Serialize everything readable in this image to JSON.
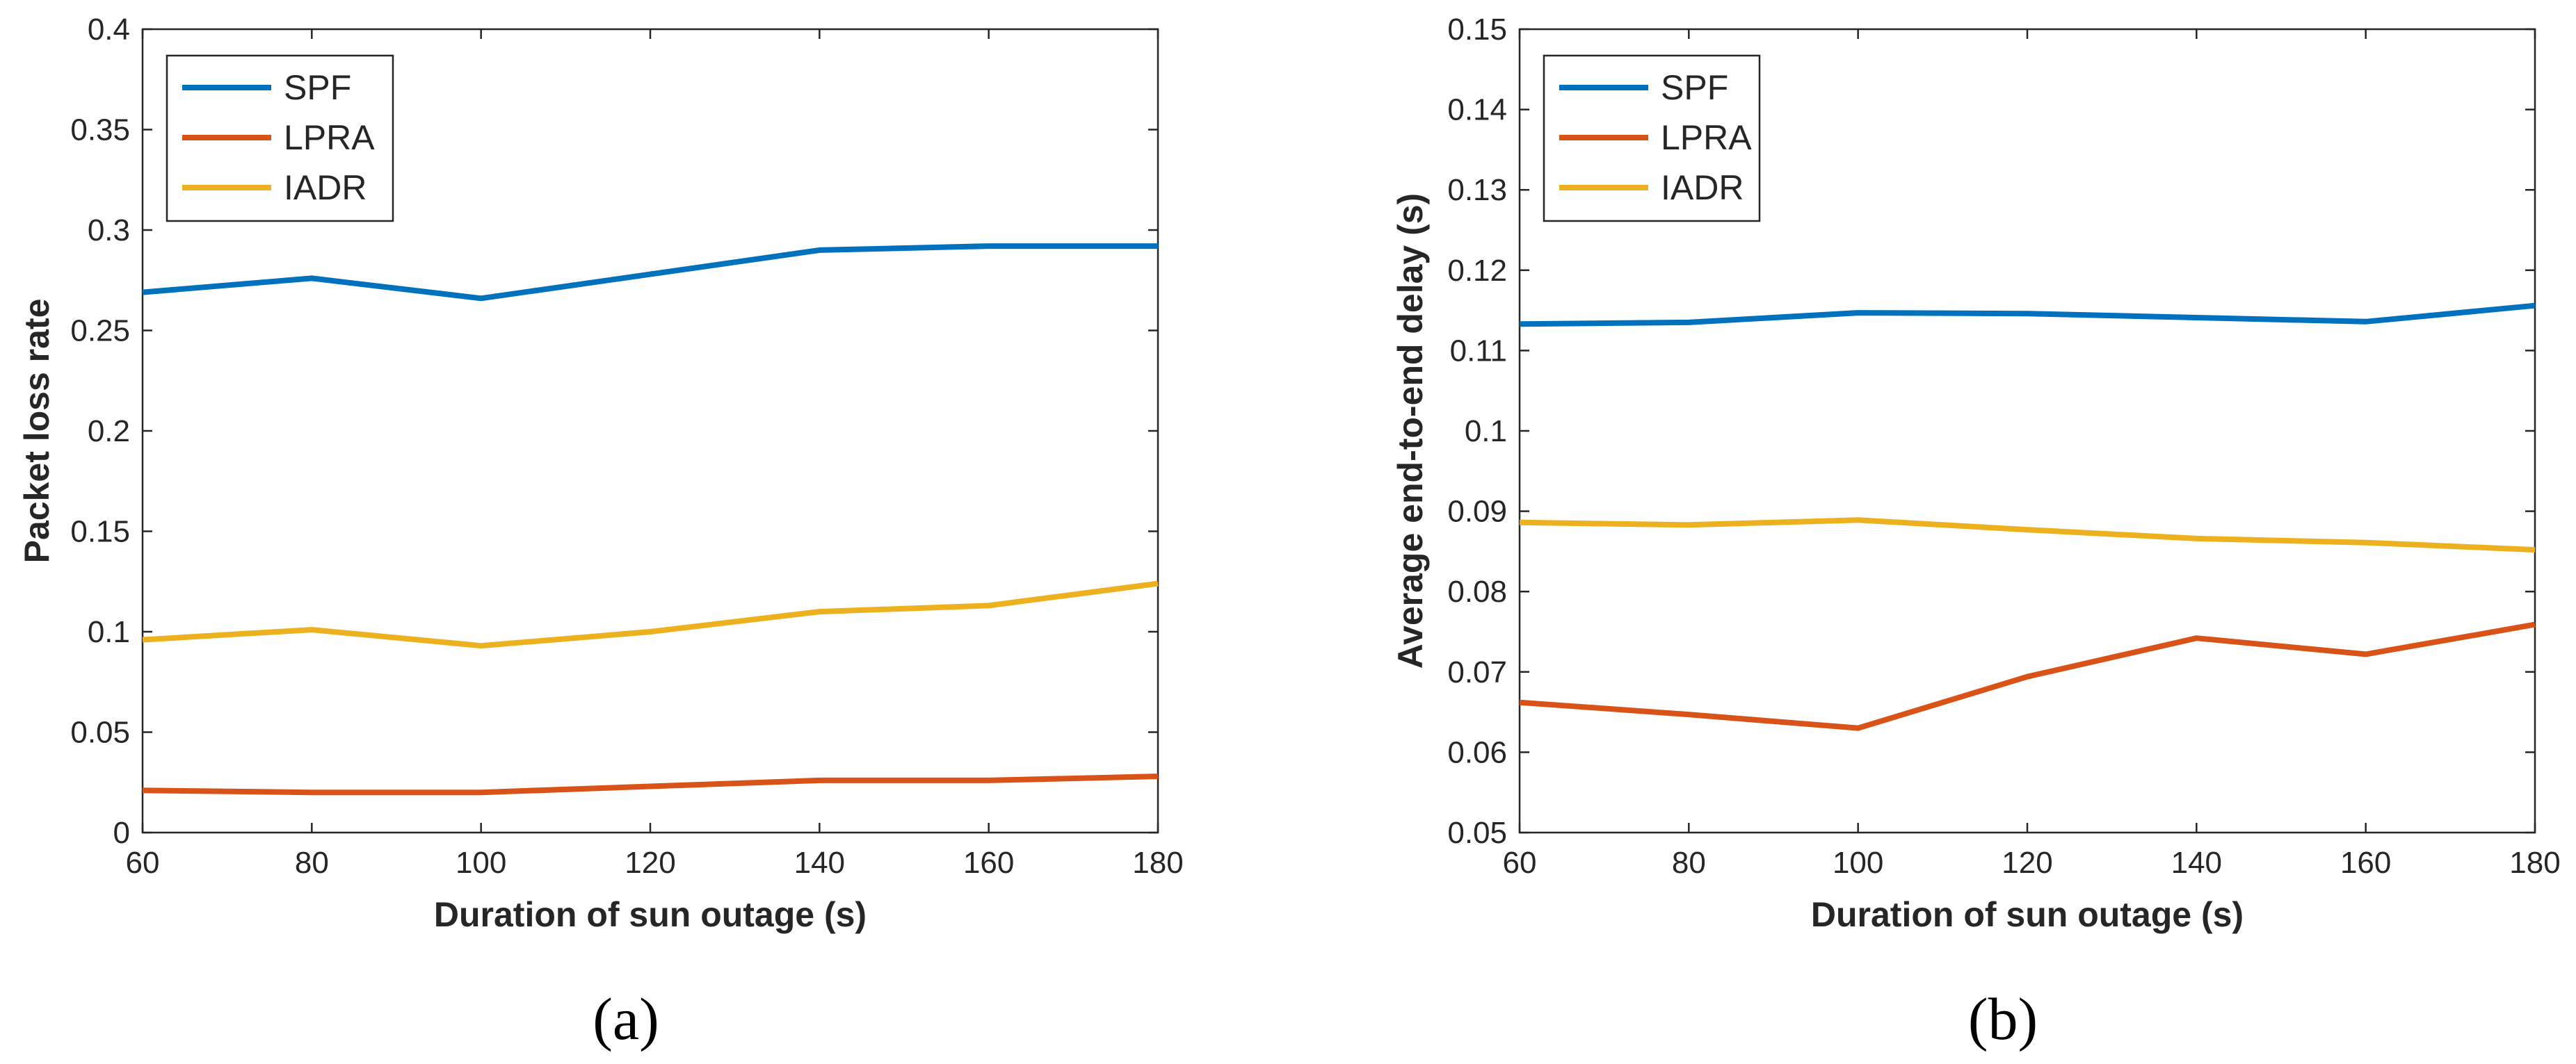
{
  "chart_data": [
    {
      "type": "line",
      "panel_label": "(a)",
      "xlabel": "Duration of sun outage (s)",
      "ylabel": "Packet loss rate",
      "xlim": [
        60,
        180
      ],
      "ylim": [
        0,
        0.4
      ],
      "xticks": [
        "60",
        "80",
        "100",
        "120",
        "140",
        "160",
        "180"
      ],
      "yticks": [
        "0",
        "0.05",
        "0.1",
        "0.15",
        "0.2",
        "0.25",
        "0.3",
        "0.35",
        "0.4"
      ],
      "legend_position": "top-left",
      "x": [
        60,
        80,
        100,
        120,
        140,
        160,
        180
      ],
      "series": [
        {
          "name": "SPF",
          "color": "#0072BD",
          "values": [
            0.269,
            0.276,
            0.266,
            0.278,
            0.29,
            0.292,
            0.292
          ]
        },
        {
          "name": "LPRA",
          "color": "#D95319",
          "values": [
            0.021,
            0.02,
            0.02,
            0.023,
            0.026,
            0.026,
            0.028
          ]
        },
        {
          "name": "IADR",
          "color": "#EDB120",
          "values": [
            0.096,
            0.101,
            0.093,
            0.1,
            0.11,
            0.113,
            0.124
          ]
        }
      ]
    },
    {
      "type": "line",
      "panel_label": "(b)",
      "xlabel": "Duration of sun outage (s)",
      "ylabel": "Average end-to-end delay (s)",
      "xlim": [
        60,
        180
      ],
      "ylim": [
        0.05,
        0.15
      ],
      "xticks": [
        "60",
        "80",
        "100",
        "120",
        "140",
        "160",
        "180"
      ],
      "yticks": [
        "0.05",
        "0.06",
        "0.07",
        "0.08",
        "0.09",
        "0.1",
        "0.11",
        "0.12",
        "0.13",
        "0.14",
        "0.15"
      ],
      "legend_position": "top-left",
      "x": [
        60,
        80,
        100,
        120,
        140,
        160,
        180
      ],
      "series": [
        {
          "name": "SPF",
          "color": "#0072BD",
          "values": [
            0.1133,
            0.1135,
            0.1147,
            0.1146,
            0.1141,
            0.1136,
            0.1156
          ]
        },
        {
          "name": "LPRA",
          "color": "#D95319",
          "values": [
            0.0662,
            0.0647,
            0.063,
            0.0694,
            0.0742,
            0.0722,
            0.0759
          ]
        },
        {
          "name": "IADR",
          "color": "#EDB120",
          "values": [
            0.0886,
            0.0883,
            0.0889,
            0.0877,
            0.0866,
            0.0861,
            0.0852
          ]
        }
      ]
    }
  ]
}
